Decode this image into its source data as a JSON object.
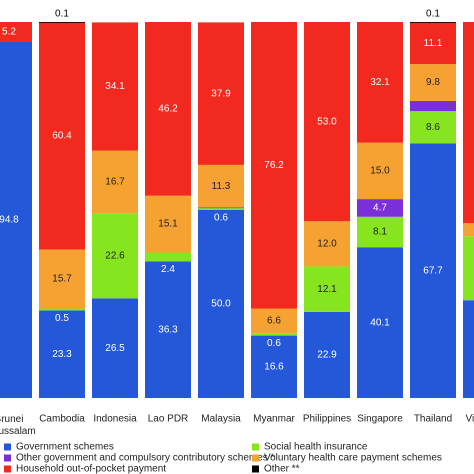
{
  "chart_data": {
    "type": "stacked_bar",
    "categories": [
      "Brunei Darussalam",
      "Cambodia",
      "Indonesia",
      "Lao PDR",
      "Malaysia",
      "Myanmar",
      "Philippines",
      "Singapore",
      "Thailand",
      "Viet Nam"
    ],
    "ylim": [
      0,
      100
    ],
    "series": [
      {
        "name": "Government schemes",
        "color": "#2458d8",
        "values": [
          94.8,
          23.3,
          26.5,
          36.3,
          50.0,
          16.6,
          22.9,
          40.1,
          67.7,
          26
        ],
        "value_labels": [
          "94.8",
          "23.3",
          "26.5",
          "36.3",
          "50.0",
          "16.6",
          "22.9",
          "40.1",
          "67.7",
          null
        ]
      },
      {
        "name": "Social health insurance",
        "color": "#86e51e",
        "values": [
          null,
          0.5,
          22.6,
          2.4,
          0.6,
          0.6,
          12.1,
          8.1,
          8.6,
          17
        ],
        "value_labels": [
          null,
          "0.5",
          "22.6",
          "2.4",
          "0.6",
          "0.6",
          "12.1",
          "8.1",
          "8.6",
          null
        ]
      },
      {
        "name": "Other government and compulsory contributory schemes *",
        "color": "#7a2fd8",
        "values": [
          null,
          null,
          null,
          null,
          0.1,
          null,
          null,
          4.7,
          2.7,
          null
        ],
        "value_labels": [
          null,
          null,
          null,
          null,
          "0.1",
          null,
          null,
          "4.7",
          "2.7",
          null
        ]
      },
      {
        "name": "Voluntary health care payment schemes",
        "color": "#f6a233",
        "values": [
          null,
          15.7,
          16.7,
          15.1,
          11.3,
          6.6,
          12.0,
          15.0,
          9.8,
          3.5
        ],
        "value_labels": [
          null,
          "15.7",
          "16.7",
          "15.1",
          "11.3",
          "6.6",
          "12.0",
          "15.0",
          "9.8",
          null
        ]
      },
      {
        "name": "Household out-of-pocket payment",
        "color": "#f2291f",
        "values": [
          5.2,
          60.4,
          34.1,
          46.2,
          37.9,
          76.2,
          53.0,
          32.1,
          11.1,
          53.5
        ],
        "value_labels": [
          "5.2",
          "60.4",
          "34.1",
          "46.2",
          "37.9",
          "76.2",
          "53.0",
          "32.1",
          "11.1",
          null
        ]
      },
      {
        "name": "Other **",
        "color": "#000000",
        "values": [
          null,
          0.1,
          null,
          null,
          null,
          null,
          null,
          null,
          0.1,
          null
        ],
        "value_labels": [
          null,
          "0.1",
          null,
          null,
          null,
          null,
          null,
          null,
          "0.1",
          null
        ]
      }
    ]
  }
}
